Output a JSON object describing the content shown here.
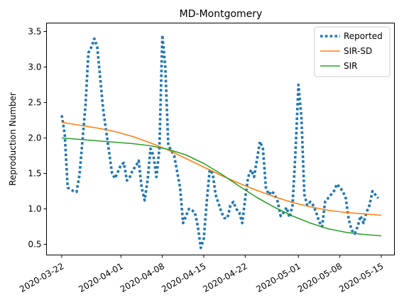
{
  "chart_data": {
    "type": "line",
    "title": "MD-Montgomery",
    "xlabel": "",
    "ylabel": "Reproduction Number",
    "x_start": "2020-03-22",
    "x_end": "2020-05-15",
    "x_ticks": [
      "2020-03-22",
      "2020-04-01",
      "2020-04-08",
      "2020-04-15",
      "2020-04-22",
      "2020-05-01",
      "2020-05-08",
      "2020-05-15"
    ],
    "y_ticks": [
      "0.5",
      "1.0",
      "1.5",
      "2.0",
      "2.5",
      "3.0",
      "3.5"
    ],
    "ylim": [
      0.35,
      3.62
    ],
    "legend_position": "top-right",
    "grid": false,
    "series": [
      {
        "name": "Reported",
        "style": "dotted",
        "color": "#1f77b4",
        "points": [
          [
            "2020-03-22",
            2.32
          ],
          [
            "2020-03-22T12",
            2.05
          ],
          [
            "2020-03-23",
            1.3
          ],
          [
            "2020-03-24",
            1.25
          ],
          [
            "2020-03-24T12",
            1.24
          ],
          [
            "2020-03-25",
            1.48
          ],
          [
            "2020-03-26",
            2.45
          ],
          [
            "2020-03-26T12",
            3.2
          ],
          [
            "2020-03-27",
            3.28
          ],
          [
            "2020-03-27T12",
            3.4
          ],
          [
            "2020-03-28",
            3.28
          ],
          [
            "2020-03-29",
            2.4
          ],
          [
            "2020-03-30",
            1.8
          ],
          [
            "2020-03-30T12",
            1.5
          ],
          [
            "2020-03-31",
            1.43
          ],
          [
            "2020-04-01",
            1.62
          ],
          [
            "2020-04-01T12",
            1.65
          ],
          [
            "2020-04-02",
            1.4
          ],
          [
            "2020-04-02T12",
            1.45
          ],
          [
            "2020-04-03",
            1.55
          ],
          [
            "2020-04-03T12",
            1.6
          ],
          [
            "2020-04-04",
            1.68
          ],
          [
            "2020-04-04T12",
            1.3
          ],
          [
            "2020-04-05",
            1.12
          ],
          [
            "2020-04-05T12",
            1.4
          ],
          [
            "2020-04-06",
            1.85
          ],
          [
            "2020-04-06T12",
            1.75
          ],
          [
            "2020-04-07",
            1.45
          ],
          [
            "2020-04-07T12",
            1.85
          ],
          [
            "2020-04-08",
            3.45
          ],
          [
            "2020-04-08T12",
            3.0
          ],
          [
            "2020-04-09",
            1.9
          ],
          [
            "2020-04-10",
            1.75
          ],
          [
            "2020-04-11",
            1.3
          ],
          [
            "2020-04-11T12",
            0.8
          ],
          [
            "2020-04-12",
            0.9
          ],
          [
            "2020-04-12T12",
            1.0
          ],
          [
            "2020-04-13",
            0.98
          ],
          [
            "2020-04-13T12",
            0.95
          ],
          [
            "2020-04-14",
            0.75
          ],
          [
            "2020-04-14T12",
            0.45
          ],
          [
            "2020-04-15",
            0.58
          ],
          [
            "2020-04-15T12",
            1.1
          ],
          [
            "2020-04-16",
            1.55
          ],
          [
            "2020-04-16T12",
            1.5
          ],
          [
            "2020-04-17",
            1.2
          ],
          [
            "2020-04-18",
            0.95
          ],
          [
            "2020-04-18T12",
            0.87
          ],
          [
            "2020-04-19",
            0.87
          ],
          [
            "2020-04-19T12",
            1.05
          ],
          [
            "2020-04-20",
            1.1
          ],
          [
            "2020-04-20T12",
            1.0
          ],
          [
            "2020-04-21",
            0.95
          ],
          [
            "2020-04-21T12",
            0.8
          ],
          [
            "2020-04-22",
            1.15
          ],
          [
            "2020-04-22T12",
            1.45
          ],
          [
            "2020-04-23",
            1.55
          ],
          [
            "2020-04-23T12",
            1.45
          ],
          [
            "2020-04-24",
            1.7
          ],
          [
            "2020-04-24T12",
            1.95
          ],
          [
            "2020-04-25",
            1.85
          ],
          [
            "2020-04-25T12",
            1.3
          ],
          [
            "2020-04-26",
            1.2
          ],
          [
            "2020-04-26T12",
            1.25
          ],
          [
            "2020-04-27",
            1.2
          ],
          [
            "2020-04-27T12",
            1.1
          ],
          [
            "2020-04-28",
            0.9
          ],
          [
            "2020-04-28T12",
            0.95
          ],
          [
            "2020-04-29",
            1.02
          ],
          [
            "2020-04-29T12",
            0.88
          ],
          [
            "2020-04-30",
            1.05
          ],
          [
            "2020-04-30T12",
            1.8
          ],
          [
            "2020-05-01",
            2.75
          ],
          [
            "2020-05-01T12",
            2.3
          ],
          [
            "2020-05-02",
            1.2
          ],
          [
            "2020-05-02T12",
            1.05
          ],
          [
            "2020-05-03",
            1.1
          ],
          [
            "2020-05-03T12",
            1.05
          ],
          [
            "2020-05-04",
            0.95
          ],
          [
            "2020-05-04T12",
            0.82
          ],
          [
            "2020-05-05",
            0.75
          ],
          [
            "2020-05-05T12",
            1.1
          ],
          [
            "2020-05-06",
            1.15
          ],
          [
            "2020-05-06T12",
            1.2
          ],
          [
            "2020-05-07",
            1.25
          ],
          [
            "2020-05-07T12",
            1.35
          ],
          [
            "2020-05-08",
            1.3
          ],
          [
            "2020-05-08T12",
            1.25
          ],
          [
            "2020-05-09",
            1.15
          ],
          [
            "2020-05-09T12",
            0.85
          ],
          [
            "2020-05-10",
            0.7
          ],
          [
            "2020-05-10T12",
            0.65
          ],
          [
            "2020-05-11",
            0.75
          ],
          [
            "2020-05-11T12",
            0.9
          ],
          [
            "2020-05-12",
            0.8
          ],
          [
            "2020-05-12T12",
            0.95
          ],
          [
            "2020-05-13",
            1.05
          ],
          [
            "2020-05-13T12",
            1.25
          ],
          [
            "2020-05-14",
            1.2
          ],
          [
            "2020-05-14T12",
            1.15
          ]
        ]
      },
      {
        "name": "SIR-SD",
        "style": "solid",
        "color": "#ff7f0e",
        "points": [
          [
            "2020-03-22",
            2.22
          ],
          [
            "2020-03-25",
            2.18
          ],
          [
            "2020-03-28",
            2.14
          ],
          [
            "2020-03-31",
            2.09
          ],
          [
            "2020-04-03",
            2.02
          ],
          [
            "2020-04-06",
            1.93
          ],
          [
            "2020-04-09",
            1.83
          ],
          [
            "2020-04-12",
            1.71
          ],
          [
            "2020-04-15",
            1.59
          ],
          [
            "2020-04-18",
            1.47
          ],
          [
            "2020-04-21",
            1.36
          ],
          [
            "2020-04-24",
            1.26
          ],
          [
            "2020-04-27",
            1.17
          ],
          [
            "2020-04-30",
            1.09
          ],
          [
            "2020-05-03",
            1.03
          ],
          [
            "2020-05-06",
            0.98
          ],
          [
            "2020-05-09",
            0.95
          ],
          [
            "2020-05-12",
            0.93
          ],
          [
            "2020-05-15",
            0.91
          ]
        ]
      },
      {
        "name": "SIR",
        "style": "solid",
        "color": "#2ca02c",
        "points": [
          [
            "2020-03-22",
            2.0
          ],
          [
            "2020-03-25",
            1.98
          ],
          [
            "2020-03-28",
            1.96
          ],
          [
            "2020-03-31",
            1.94
          ],
          [
            "2020-04-03",
            1.92
          ],
          [
            "2020-04-06",
            1.89
          ],
          [
            "2020-04-09",
            1.84
          ],
          [
            "2020-04-12",
            1.76
          ],
          [
            "2020-04-15",
            1.64
          ],
          [
            "2020-04-18",
            1.49
          ],
          [
            "2020-04-21",
            1.32
          ],
          [
            "2020-04-24",
            1.16
          ],
          [
            "2020-04-27",
            1.02
          ],
          [
            "2020-04-30",
            0.9
          ],
          [
            "2020-05-03",
            0.8
          ],
          [
            "2020-05-06",
            0.72
          ],
          [
            "2020-05-09",
            0.67
          ],
          [
            "2020-05-12",
            0.64
          ],
          [
            "2020-05-15",
            0.62
          ]
        ]
      }
    ]
  }
}
